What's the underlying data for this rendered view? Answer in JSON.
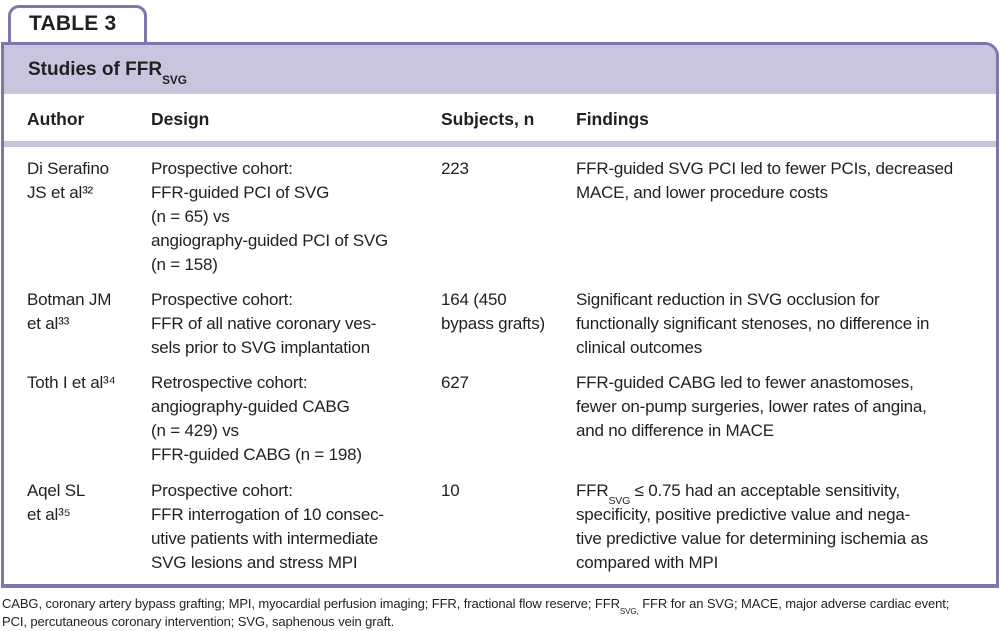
{
  "colors": {
    "border_purple": "#7e76ad",
    "band_lavender": "#c9c5df",
    "text": "#231f20"
  },
  "tab": {
    "label": "TABLE 3"
  },
  "title": {
    "pre": "Studies of FFR",
    "sub": "SVG"
  },
  "table": {
    "headers": [
      "Author",
      "Design",
      "Subjects, n",
      "Findings"
    ],
    "rows": [
      {
        "author": "Di Serafino\nJS et al³²",
        "design": "Prospective cohort:\nFFR-guided PCI of SVG\n(n = 65) vs\nangiography-guided PCI of SVG\n(n = 158)",
        "subjects": "223",
        "findings_pre": "",
        "findings_sub": "",
        "findings_rest": "FFR-guided SVG PCI led to fewer PCIs, decreased\nMACE, and lower procedure costs"
      },
      {
        "author": "Botman JM\net al³³",
        "design": "Prospective cohort:\nFFR of all native coronary ves-\nsels prior to SVG implantation",
        "subjects": "164 (450\nbypass grafts)",
        "findings_pre": "",
        "findings_sub": "",
        "findings_rest": "Significant reduction in SVG occlusion for\nfunctionally significant stenoses, no difference in\nclinical outcomes"
      },
      {
        "author": "Toth I et al³⁴",
        "design": "Retrospective cohort:\nangiography-guided CABG\n(n = 429) vs\nFFR-guided CABG (n = 198)",
        "subjects": "627",
        "findings_pre": "",
        "findings_sub": "",
        "findings_rest": "FFR-guided CABG led to fewer anastomoses,\nfewer on-pump surgeries, lower rates of angina,\nand no difference in MACE"
      },
      {
        "author": "Aqel SL\net al³⁵",
        "design": "Prospective cohort:\nFFR interrogation of 10 consec-\nutive patients with intermediate\nSVG lesions and stress MPI",
        "subjects": "10",
        "findings_pre": "FFR",
        "findings_sub": "SVG",
        "findings_rest": " ≤ 0.75 had an acceptable sensitivity,\nspecificity, positive predictive value and nega-\ntive predictive value for determining ischemia as\ncompared with MPI"
      }
    ]
  },
  "footnote": {
    "pre": "CABG, coronary artery bypass grafting; MPI, myocardial perfusion imaging; FFR, fractional flow reserve; FFR",
    "sub": "SVG,",
    "post": " FFR for an SVG; MACE, major adverse cardiac event;\nPCI, percutaneous coronary intervention; SVG, saphenous vein graft."
  }
}
